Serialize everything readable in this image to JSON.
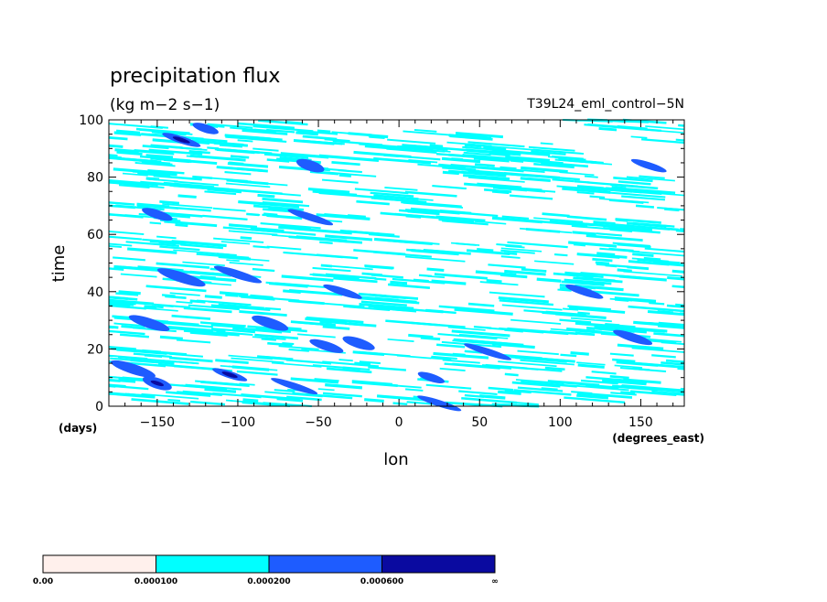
{
  "chart_data": {
    "type": "heatmap",
    "title": "precipitation flux",
    "units": "(kg m−2 s−1)",
    "run_label": "T39L24_eml_control−5N",
    "xlabel": "lon",
    "ylabel": "time",
    "x_units": "(degrees_east)",
    "y_units": "(days)",
    "xlim": [
      -180,
      177
    ],
    "ylim": [
      0,
      100
    ],
    "x_ticks": [
      -150,
      -100,
      -50,
      0,
      50,
      100,
      150
    ],
    "x_tick_labels": [
      "−150",
      "−100",
      "−50",
      "0",
      "50",
      "100",
      "150"
    ],
    "y_ticks": [
      0,
      20,
      40,
      60,
      80,
      100
    ],
    "y_tick_labels": [
      "0",
      "20",
      "40",
      "60",
      "80",
      "100"
    ],
    "grid": false,
    "legend": "colorbar-bottom",
    "colorbar": {
      "levels": [
        "0.00",
        "0.000100",
        "0.000200",
        "0.000600",
        "∞"
      ],
      "colors": [
        "#fff0ec",
        "#00ffff",
        "#1e5cff",
        "#0a0aa0"
      ]
    },
    "features": {
      "cyan_streaks": [
        {
          "lon": -160,
          "day": 95
        },
        {
          "lon": -125,
          "day": 92
        },
        {
          "lon": -95,
          "day": 97
        },
        {
          "lon": -40,
          "day": 95
        },
        {
          "lon": 40,
          "day": 92
        },
        {
          "lon": 80,
          "day": 90
        },
        {
          "lon": 150,
          "day": 97
        },
        {
          "lon": -165,
          "day": 86
        },
        {
          "lon": -120,
          "day": 86
        },
        {
          "lon": -60,
          "day": 86
        },
        {
          "lon": 20,
          "day": 88
        },
        {
          "lon": 70,
          "day": 84
        },
        {
          "lon": 130,
          "day": 82
        },
        {
          "lon": -150,
          "day": 78
        },
        {
          "lon": -100,
          "day": 76
        },
        {
          "lon": -10,
          "day": 74
        },
        {
          "lon": 60,
          "day": 78
        },
        {
          "lon": 120,
          "day": 76
        },
        {
          "lon": 165,
          "day": 72
        },
        {
          "lon": -160,
          "day": 68
        },
        {
          "lon": -110,
          "day": 66
        },
        {
          "lon": -50,
          "day": 65
        },
        {
          "lon": 30,
          "day": 68
        },
        {
          "lon": 100,
          "day": 64
        },
        {
          "lon": 160,
          "day": 62
        },
        {
          "lon": -170,
          "day": 58
        },
        {
          "lon": -120,
          "day": 55
        },
        {
          "lon": -70,
          "day": 58
        },
        {
          "lon": 0,
          "day": 57
        },
        {
          "lon": 70,
          "day": 55
        },
        {
          "lon": 140,
          "day": 55
        },
        {
          "lon": -150,
          "day": 48
        },
        {
          "lon": -90,
          "day": 46
        },
        {
          "lon": -20,
          "day": 47
        },
        {
          "lon": 40,
          "day": 45
        },
        {
          "lon": 100,
          "day": 44
        },
        {
          "lon": 160,
          "day": 46
        },
        {
          "lon": -170,
          "day": 38
        },
        {
          "lon": -110,
          "day": 37
        },
        {
          "lon": -40,
          "day": 38
        },
        {
          "lon": 20,
          "day": 36
        },
        {
          "lon": 90,
          "day": 37
        },
        {
          "lon": 150,
          "day": 35
        },
        {
          "lon": -160,
          "day": 28
        },
        {
          "lon": -100,
          "day": 27
        },
        {
          "lon": -30,
          "day": 27
        },
        {
          "lon": 40,
          "day": 26
        },
        {
          "lon": 110,
          "day": 28
        },
        {
          "lon": 165,
          "day": 26
        },
        {
          "lon": -165,
          "day": 17
        },
        {
          "lon": -120,
          "day": 16
        },
        {
          "lon": -60,
          "day": 18
        },
        {
          "lon": 0,
          "day": 16
        },
        {
          "lon": 60,
          "day": 17
        },
        {
          "lon": 120,
          "day": 15
        },
        {
          "lon": 170,
          "day": 17
        },
        {
          "lon": -150,
          "day": 6
        },
        {
          "lon": -90,
          "day": 5
        },
        {
          "lon": -20,
          "day": 6
        },
        {
          "lon": 40,
          "day": 5
        },
        {
          "lon": 100,
          "day": 6
        },
        {
          "lon": 155,
          "day": 7
        }
      ],
      "blue_blobs": [
        {
          "lon": -150,
          "day": 67,
          "level": "0.000200"
        },
        {
          "lon": -135,
          "day": 45,
          "level": "0.000200"
        },
        {
          "lon": -100,
          "day": 46,
          "level": "0.000200"
        },
        {
          "lon": -55,
          "day": 84,
          "level": "0.000200"
        },
        {
          "lon": -55,
          "day": 66,
          "level": "0.000200"
        },
        {
          "lon": -35,
          "day": 40,
          "level": "0.000200"
        },
        {
          "lon": -155,
          "day": 29,
          "level": "0.000200"
        },
        {
          "lon": -80,
          "day": 29,
          "level": "0.000200"
        },
        {
          "lon": -45,
          "day": 21,
          "level": "0.000200"
        },
        {
          "lon": -25,
          "day": 22,
          "level": "0.000200"
        },
        {
          "lon": 55,
          "day": 19,
          "level": "0.000200"
        },
        {
          "lon": 115,
          "day": 40,
          "level": "0.000200"
        },
        {
          "lon": 145,
          "day": 24,
          "level": "0.000200"
        },
        {
          "lon": 155,
          "day": 84,
          "level": "0.000200"
        },
        {
          "lon": -165,
          "day": 13,
          "level": "0.000200"
        },
        {
          "lon": -150,
          "day": 8,
          "level": "0.000600"
        },
        {
          "lon": -105,
          "day": 11,
          "level": "0.000600"
        },
        {
          "lon": -65,
          "day": 7,
          "level": "0.000200"
        },
        {
          "lon": 20,
          "day": 10,
          "level": "0.000200"
        },
        {
          "lon": 25,
          "day": 1,
          "level": "0.000200"
        },
        {
          "lon": -135,
          "day": 93,
          "level": "0.000600"
        },
        {
          "lon": -120,
          "day": 97,
          "level": "0.000200"
        }
      ]
    }
  }
}
